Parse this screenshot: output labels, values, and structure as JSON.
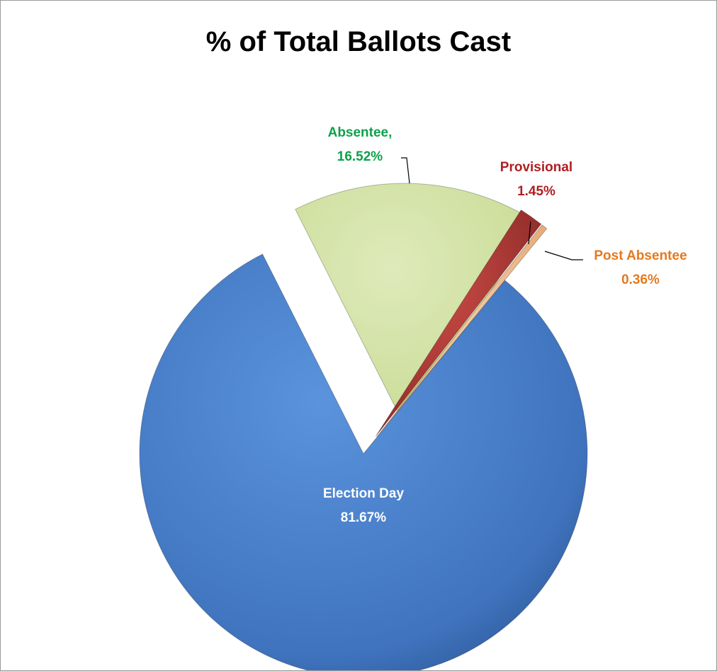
{
  "chart_data": {
    "type": "pie",
    "title": "% of Total Ballots Cast",
    "slices": [
      {
        "key": "absentee",
        "label_lines": [
          "Absentee,",
          "16.52%"
        ],
        "value": 16.52,
        "color": "#d3e2a6",
        "label_color": "#0fa04a"
      },
      {
        "key": "provisional",
        "label_lines": [
          "Provisional",
          "1.45%"
        ],
        "value": 1.45,
        "color": "#b83a36",
        "label_color": "#b01e22"
      },
      {
        "key": "post-absentee",
        "label_lines": [
          "Post Absentee",
          "0.36%"
        ],
        "value": 0.36,
        "color": "#f2c49b",
        "label_color": "#e6791e"
      },
      {
        "key": "election-day",
        "label_lines": [
          "Election Day",
          "81.67%"
        ],
        "value": 81.67,
        "color": "#4a7fc8",
        "label_color": "#ffffff"
      }
    ]
  }
}
